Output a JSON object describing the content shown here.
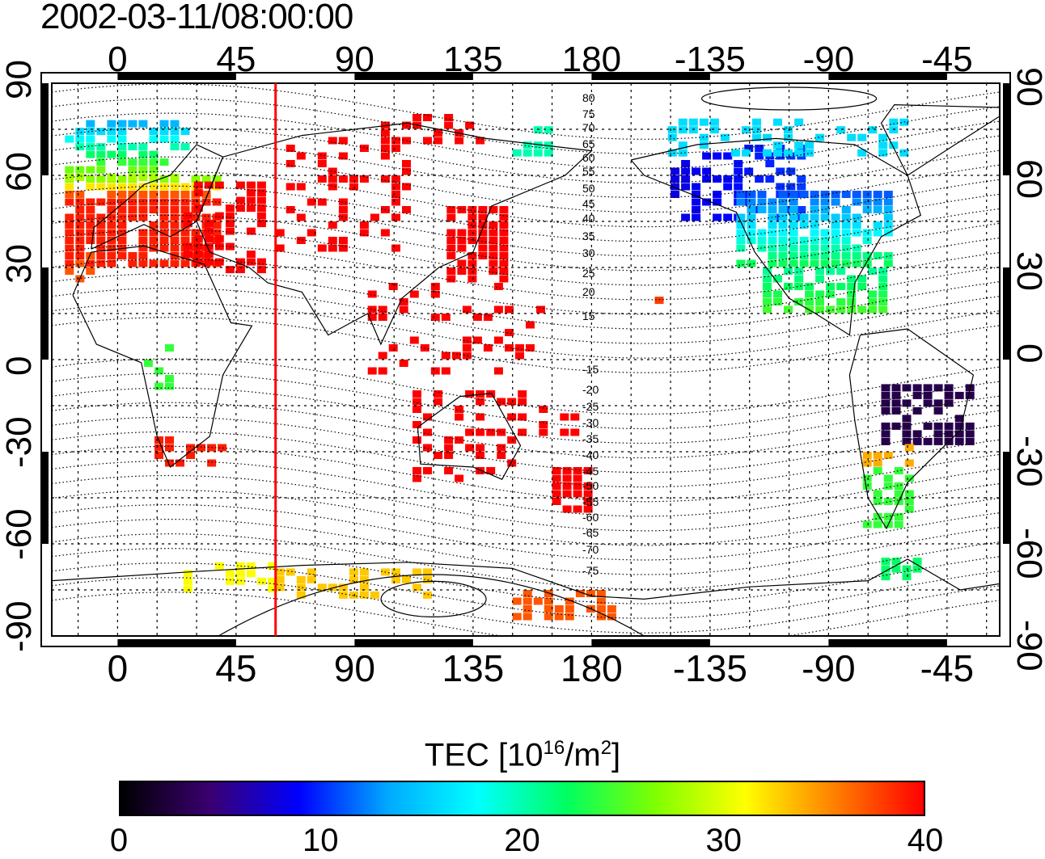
{
  "title": "2002-03-11/08:00:00",
  "axes": {
    "lon_ticks": [
      {
        "lon": 0,
        "label": "0"
      },
      {
        "lon": 45,
        "label": "45"
      },
      {
        "lon": 90,
        "label": "90"
      },
      {
        "lon": 135,
        "label": "135"
      },
      {
        "lon": 180,
        "label": "180"
      },
      {
        "lon": 225,
        "label": "-135"
      },
      {
        "lon": 270,
        "label": "-90"
      },
      {
        "lon": 315,
        "label": "-45"
      }
    ],
    "lat_ticks": [
      {
        "lat": 90,
        "label": "90"
      },
      {
        "lat": 60,
        "label": "60"
      },
      {
        "lat": 30,
        "label": "30"
      },
      {
        "lat": 0,
        "label": "0"
      },
      {
        "lat": -30,
        "label": "-30"
      },
      {
        "lat": -60,
        "label": "-60"
      },
      {
        "lat": -90,
        "label": "-90"
      }
    ],
    "lon_range": [
      -25,
      335
    ],
    "lat_range": [
      -90,
      90
    ]
  },
  "meridian_marker_lon": 60,
  "contour_labels": [
    "80",
    "75",
    "70",
    "65",
    "60",
    "55",
    "50",
    "45",
    "40",
    "35",
    "30",
    "25",
    "20",
    "15",
    "-15",
    "-20",
    "-25",
    "-30",
    "-35",
    "-40",
    "-45",
    "-50",
    "-55",
    "-60",
    "-65",
    "-70",
    "-75"
  ],
  "colorbar": {
    "title_prefix": "TEC  [10",
    "title_sup1": "16",
    "title_mid": "/m",
    "title_sup2": "2",
    "title_suffix": "]",
    "min": 0,
    "max": 40,
    "ticks": [
      "0",
      "10",
      "20",
      "30",
      "40"
    ],
    "stops": [
      "#000000",
      "#3a0070",
      "#0000ff",
      "#00aaff",
      "#00ffff",
      "#00ff60",
      "#80ff00",
      "#ffff00",
      "#ff8000",
      "#ff0000"
    ]
  },
  "colors": {
    "marker": "#ff0000",
    "coast": "#000000",
    "grid": "#000000"
  }
}
